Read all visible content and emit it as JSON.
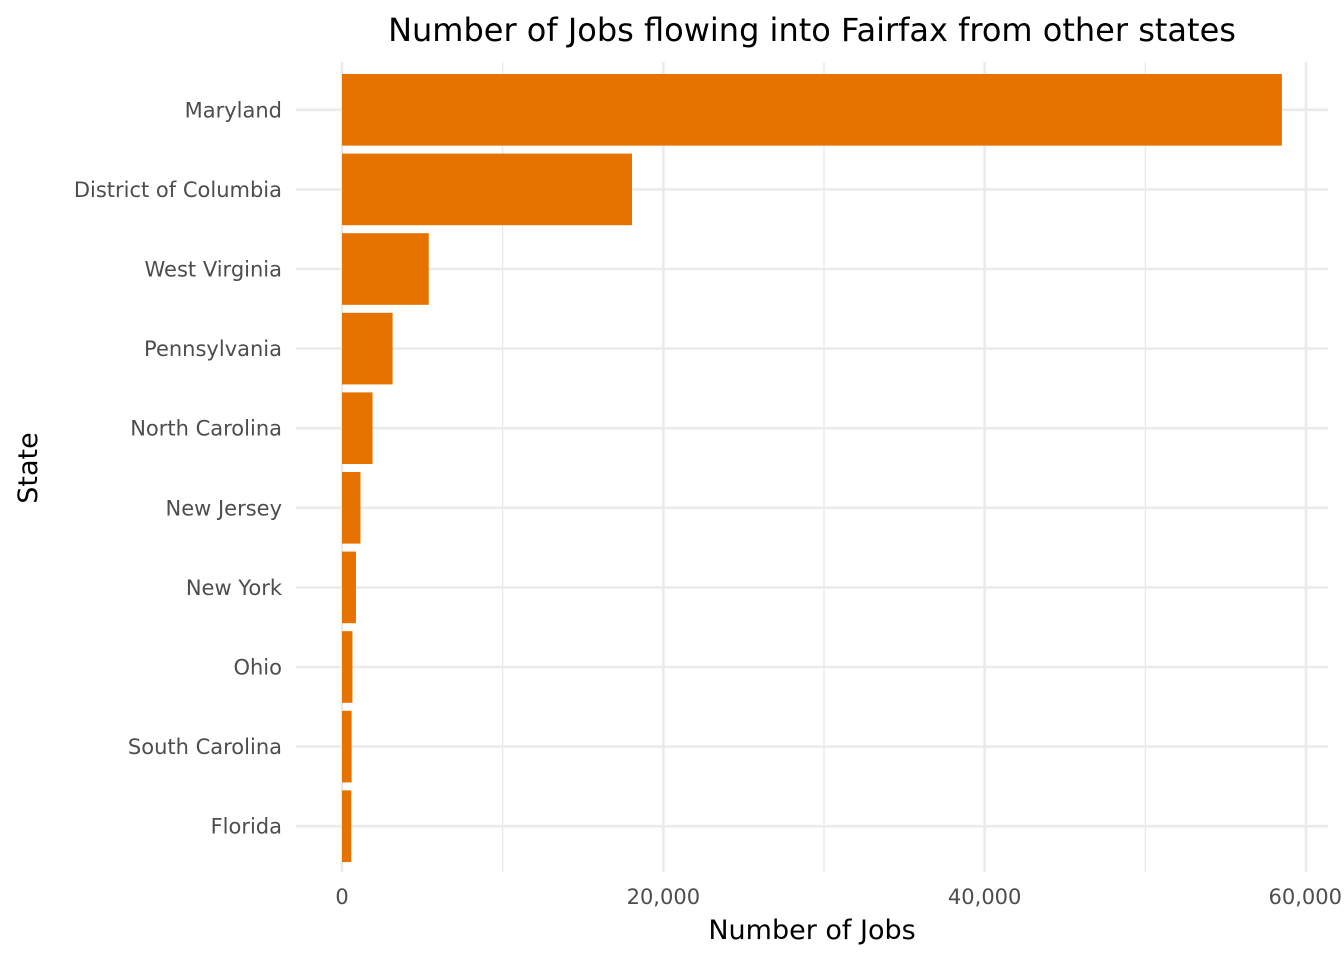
{
  "chart_data": {
    "type": "bar",
    "orientation": "horizontal",
    "title": "Number of Jobs flowing into Fairfax from other states",
    "xlabel": "Number of Jobs",
    "ylabel": "State",
    "categories": [
      "Maryland",
      "District of Columbia",
      "West Virginia",
      "Pennsylvania",
      "North Carolina",
      "New Jersey",
      "New York",
      "Ohio",
      "South Carolina",
      "Florida"
    ],
    "values": [
      58500,
      18050,
      5400,
      3150,
      1900,
      1150,
      870,
      650,
      600,
      580
    ],
    "xlim": [
      0,
      60000
    ],
    "x_ticks": [
      0,
      20000,
      40000,
      60000
    ],
    "x_tick_labels": [
      "0",
      "20,000",
      "40,000",
      "60,000"
    ],
    "bar_color": "#E67300",
    "grid": true,
    "legend": "none"
  }
}
